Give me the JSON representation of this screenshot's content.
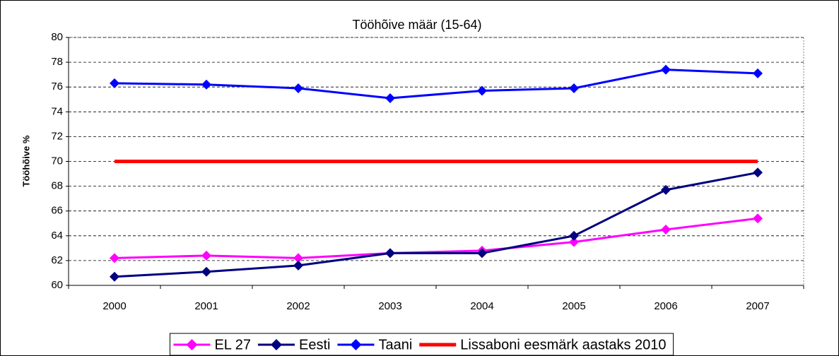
{
  "chart_data": {
    "type": "line",
    "title": "Tööhõive määr (15-64)",
    "y_label": "Tööhõive %",
    "categories": [
      "2000",
      "2001",
      "2002",
      "2003",
      "2004",
      "2005",
      "2006",
      "2007"
    ],
    "series": [
      {
        "name": "EL 27",
        "color": "#ff00ff",
        "marker": "diamond",
        "values": [
          62.2,
          62.4,
          62.2,
          62.6,
          62.8,
          63.5,
          64.5,
          65.4
        ]
      },
      {
        "name": "Eesti",
        "color": "#000080",
        "marker": "diamond",
        "values": [
          60.7,
          61.1,
          61.6,
          62.6,
          62.6,
          64.0,
          67.7,
          69.1
        ]
      },
      {
        "name": "Taani",
        "color": "#0000ff",
        "marker": "diamond",
        "values": [
          76.3,
          76.2,
          75.9,
          75.1,
          75.7,
          75.9,
          77.4,
          77.1
        ]
      },
      {
        "name": "Lissaboni eesmärk aastaks 2010",
        "color": "#ff0000",
        "marker": "none",
        "values": [
          70,
          70,
          70,
          70,
          70,
          70,
          70,
          70
        ]
      }
    ],
    "ylim": [
      60,
      80
    ],
    "yticks": [
      60,
      62,
      64,
      66,
      68,
      70,
      72,
      74,
      76,
      78,
      80
    ],
    "grid": true,
    "legend": "bottom"
  }
}
